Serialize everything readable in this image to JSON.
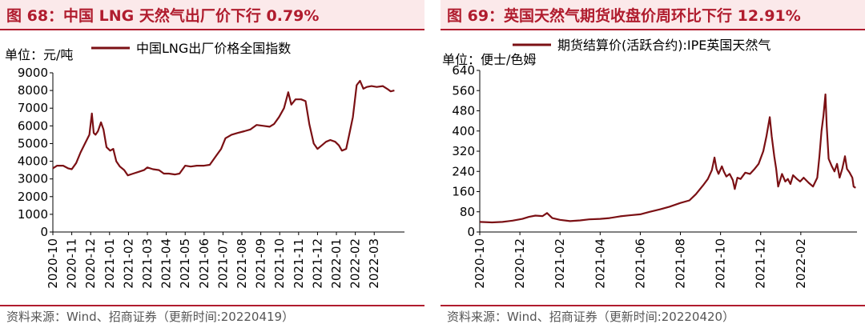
{
  "colors": {
    "accent": "#b01c2e",
    "title_bg": "#fbe9ea",
    "line": "#7b1014",
    "source": "#555555"
  },
  "panels": [
    {
      "title": "图 68：中国 LNG 天然气出厂价下行 0.79%",
      "source": "资料来源：Wind、招商证券（更新时间:20220419）"
    },
    {
      "title": "图 69：英国天然气期货收盘价周环比下行 12.91%",
      "source": "资料来源：Wind、招商证券（更新时间:20220420）"
    }
  ],
  "chart_data": [
    {
      "type": "line",
      "unit_label": "单位：元/吨",
      "ylim": [
        0,
        9000
      ],
      "y_ticks": [
        "0",
        "1000",
        "2000",
        "3000",
        "4000",
        "5000",
        "6000",
        "7000",
        "8000",
        "9000"
      ],
      "x_ticks": [
        "2020-10",
        "2020-11",
        "2020-12",
        "2021-01",
        "2021-02",
        "2021-03",
        "2021-04",
        "2021-05",
        "2021-06",
        "2021-07",
        "2021-08",
        "2021-09",
        "2021-10",
        "2021-11",
        "2021-12",
        "2022-01",
        "2022-02",
        "2022-03"
      ],
      "legend": "top",
      "grid": false,
      "series": [
        {
          "name": "中国LNG出厂价格全国指数",
          "color": "#7b1014",
          "points": [
            [
              "2020-10-01",
              3600
            ],
            [
              "2020-10-08",
              3750
            ],
            [
              "2020-10-18",
              3750
            ],
            [
              "2020-10-26",
              3600
            ],
            [
              "2020-11-01",
              3550
            ],
            [
              "2020-11-08",
              3900
            ],
            [
              "2020-11-15",
              4500
            ],
            [
              "2020-11-22",
              5000
            ],
            [
              "2020-11-29",
              5500
            ],
            [
              "2020-12-03",
              6700
            ],
            [
              "2020-12-06",
              5600
            ],
            [
              "2020-12-09",
              5500
            ],
            [
              "2020-12-13",
              5700
            ],
            [
              "2020-12-18",
              6200
            ],
            [
              "2020-12-22",
              5800
            ],
            [
              "2020-12-27",
              4800
            ],
            [
              "2021-01-02",
              4600
            ],
            [
              "2021-01-07",
              4700
            ],
            [
              "2021-01-12",
              4000
            ],
            [
              "2021-01-18",
              3700
            ],
            [
              "2021-01-25",
              3500
            ],
            [
              "2021-01-31",
              3200
            ],
            [
              "2021-02-08",
              3300
            ],
            [
              "2021-02-16",
              3400
            ],
            [
              "2021-02-24",
              3500
            ],
            [
              "2021-03-01",
              3650
            ],
            [
              "2021-03-10",
              3550
            ],
            [
              "2021-03-20",
              3500
            ],
            [
              "2021-03-28",
              3300
            ],
            [
              "2021-04-05",
              3300
            ],
            [
              "2021-04-15",
              3250
            ],
            [
              "2021-04-22",
              3300
            ],
            [
              "2021-05-01",
              3750
            ],
            [
              "2021-05-10",
              3700
            ],
            [
              "2021-05-20",
              3750
            ],
            [
              "2021-06-01",
              3750
            ],
            [
              "2021-06-10",
              3800
            ],
            [
              "2021-06-20",
              4300
            ],
            [
              "2021-06-28",
              4700
            ],
            [
              "2021-07-05",
              5300
            ],
            [
              "2021-07-15",
              5500
            ],
            [
              "2021-07-25",
              5600
            ],
            [
              "2021-08-05",
              5700
            ],
            [
              "2021-08-15",
              5800
            ],
            [
              "2021-08-25",
              6050
            ],
            [
              "2021-09-05",
              6000
            ],
            [
              "2021-09-15",
              5950
            ],
            [
              "2021-09-22",
              6100
            ],
            [
              "2021-09-30",
              6500
            ],
            [
              "2021-10-08",
              7000
            ],
            [
              "2021-10-15",
              7900
            ],
            [
              "2021-10-20",
              7200
            ],
            [
              "2021-10-27",
              7500
            ],
            [
              "2021-11-05",
              7500
            ],
            [
              "2021-11-12",
              7400
            ],
            [
              "2021-11-18",
              6100
            ],
            [
              "2021-11-25",
              5000
            ],
            [
              "2021-12-01",
              4700
            ],
            [
              "2021-12-08",
              4900
            ],
            [
              "2021-12-15",
              5100
            ],
            [
              "2021-12-22",
              5200
            ],
            [
              "2021-12-30",
              5100
            ],
            [
              "2022-01-05",
              4900
            ],
            [
              "2022-01-10",
              4600
            ],
            [
              "2022-01-17",
              4700
            ],
            [
              "2022-01-22",
              5500
            ],
            [
              "2022-01-28",
              6500
            ],
            [
              "2022-02-03",
              8300
            ],
            [
              "2022-02-08",
              8550
            ],
            [
              "2022-02-13",
              8100
            ],
            [
              "2022-02-18",
              8200
            ],
            [
              "2022-02-25",
              8250
            ],
            [
              "2022-03-05",
              8200
            ],
            [
              "2022-03-15",
              8250
            ],
            [
              "2022-03-22",
              8100
            ],
            [
              "2022-03-28",
              7950
            ],
            [
              "2022-04-03",
              8000
            ]
          ]
        }
      ]
    },
    {
      "type": "line",
      "unit_label": "单位：便士/色姆",
      "ylim": [
        0,
        640
      ],
      "y_ticks": [
        "0",
        "80",
        "160",
        "240",
        "320",
        "400",
        "480",
        "560",
        "640"
      ],
      "x_ticks": [
        "2020-10",
        "2020-12",
        "2021-02",
        "2021-04",
        "2021-06",
        "2021-08",
        "2021-10",
        "2021-12",
        "2022-02"
      ],
      "legend": "top",
      "grid": false,
      "series": [
        {
          "name": "期货结算价(活跃合约):IPE英国天然气",
          "color": "#7b1014",
          "points": [
            [
              "2020-10-01",
              40
            ],
            [
              "2020-10-20",
              38
            ],
            [
              "2020-11-05",
              40
            ],
            [
              "2020-11-20",
              45
            ],
            [
              "2020-12-05",
              52
            ],
            [
              "2020-12-15",
              60
            ],
            [
              "2020-12-25",
              65
            ],
            [
              "2021-01-05",
              63
            ],
            [
              "2021-01-12",
              75
            ],
            [
              "2021-01-20",
              55
            ],
            [
              "2021-02-01",
              48
            ],
            [
              "2021-02-15",
              43
            ],
            [
              "2021-03-01",
              46
            ],
            [
              "2021-03-15",
              50
            ],
            [
              "2021-04-01",
              52
            ],
            [
              "2021-04-15",
              55
            ],
            [
              "2021-05-01",
              62
            ],
            [
              "2021-05-15",
              66
            ],
            [
              "2021-06-01",
              70
            ],
            [
              "2021-06-15",
              80
            ],
            [
              "2021-07-01",
              90
            ],
            [
              "2021-07-15",
              100
            ],
            [
              "2021-08-01",
              115
            ],
            [
              "2021-08-15",
              125
            ],
            [
              "2021-08-25",
              150
            ],
            [
              "2021-09-05",
              185
            ],
            [
              "2021-09-12",
              210
            ],
            [
              "2021-09-18",
              245
            ],
            [
              "2021-09-22",
              295
            ],
            [
              "2021-09-25",
              250
            ],
            [
              "2021-09-28",
              230
            ],
            [
              "2021-10-03",
              260
            ],
            [
              "2021-10-06",
              240
            ],
            [
              "2021-10-10",
              220
            ],
            [
              "2021-10-15",
              230
            ],
            [
              "2021-10-20",
              205
            ],
            [
              "2021-10-23",
              170
            ],
            [
              "2021-10-27",
              215
            ],
            [
              "2021-11-01",
              210
            ],
            [
              "2021-11-08",
              235
            ],
            [
              "2021-11-15",
              230
            ],
            [
              "2021-11-22",
              250
            ],
            [
              "2021-11-28",
              270
            ],
            [
              "2021-12-05",
              320
            ],
            [
              "2021-12-10",
              380
            ],
            [
              "2021-12-15",
              455
            ],
            [
              "2021-12-18",
              380
            ],
            [
              "2021-12-22",
              300
            ],
            [
              "2021-12-25",
              250
            ],
            [
              "2021-12-28",
              180
            ],
            [
              "2022-01-03",
              230
            ],
            [
              "2022-01-08",
              200
            ],
            [
              "2022-01-12",
              210
            ],
            [
              "2022-01-16",
              190
            ],
            [
              "2022-01-20",
              225
            ],
            [
              "2022-01-26",
              210
            ],
            [
              "2022-01-31",
              200
            ],
            [
              "2022-02-05",
              215
            ],
            [
              "2022-02-12",
              195
            ],
            [
              "2022-02-18",
              180
            ],
            [
              "2022-02-24",
              215
            ],
            [
              "2022-02-27",
              300
            ],
            [
              "2022-03-02",
              400
            ],
            [
              "2022-03-05",
              460
            ],
            [
              "2022-03-08",
              545
            ],
            [
              "2022-03-10",
              420
            ],
            [
              "2022-03-13",
              290
            ],
            [
              "2022-03-18",
              260
            ],
            [
              "2022-03-22",
              240
            ],
            [
              "2022-03-26",
              270
            ],
            [
              "2022-03-30",
              215
            ],
            [
              "2022-04-03",
              250
            ],
            [
              "2022-04-07",
              300
            ],
            [
              "2022-04-10",
              250
            ],
            [
              "2022-04-14",
              235
            ],
            [
              "2022-04-18",
              215
            ],
            [
              "2022-04-20",
              180
            ],
            [
              "2022-04-23",
              175
            ]
          ]
        }
      ]
    }
  ]
}
